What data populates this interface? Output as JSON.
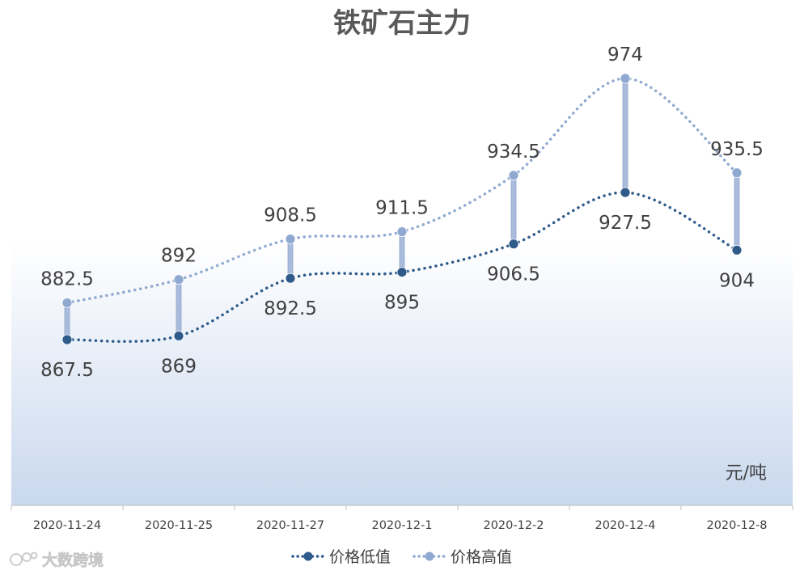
{
  "chart_data": {
    "type": "line",
    "title": "铁矿石主力",
    "unit": "元/吨",
    "categories": [
      "2020-11-24",
      "2020-11-25",
      "2020-11-27",
      "2020-12-1",
      "2020-12-2",
      "2020-12-4",
      "2020-12-8"
    ],
    "ylim": [
      800,
      1000
    ],
    "grid": false,
    "legend_position": "bottom",
    "series": [
      {
        "name": "价格低值",
        "values": [
          867.5,
          869,
          892.5,
          895,
          906.5,
          927.5,
          904
        ],
        "labels": [
          "867.5",
          "869",
          "892.5",
          "895",
          "906.5",
          "927.5",
          "904"
        ],
        "color": "#2F5B8A"
      },
      {
        "name": "价格高值",
        "values": [
          882.5,
          892,
          908.5,
          911.5,
          934.5,
          974,
          935.5
        ],
        "labels": [
          "882.5",
          "892",
          "908.5",
          "911.5",
          "934.5",
          "974",
          "935.5"
        ],
        "color": "#8FA9D0"
      }
    ],
    "connector_color": "#A9BCDD",
    "background_gradient": [
      "#ffffff",
      "#C9D8EE"
    ]
  },
  "watermark": "大数跨境"
}
